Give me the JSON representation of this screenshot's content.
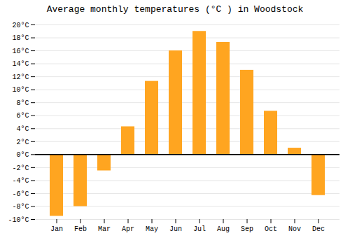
{
  "chart_data": {
    "type": "bar",
    "title": "Average monthly temperatures (°C ) in Woodstock",
    "categories": [
      "Jan",
      "Feb",
      "Mar",
      "Apr",
      "May",
      "Jun",
      "Jul",
      "Aug",
      "Sep",
      "Oct",
      "Nov",
      "Dec"
    ],
    "values": [
      -9.5,
      -8.0,
      -2.5,
      4.3,
      11.3,
      16.0,
      19.0,
      17.3,
      13.0,
      6.7,
      1.0,
      -6.3
    ],
    "color": "#FFA520",
    "ylim": [
      -10,
      20
    ],
    "yticks": [
      {
        "value": -10,
        "label": "-10°C"
      },
      {
        "value": -8,
        "label": "-8°C"
      },
      {
        "value": -6,
        "label": "-6°C"
      },
      {
        "value": -4,
        "label": "-4°C"
      },
      {
        "value": -2,
        "label": "-2°C"
      },
      {
        "value": 0,
        "label": "0°C"
      },
      {
        "value": 2,
        "label": "2°C"
      },
      {
        "value": 4,
        "label": "4°C"
      },
      {
        "value": 6,
        "label": "6°C"
      },
      {
        "value": 8,
        "label": "8°C"
      },
      {
        "value": 10,
        "label": "10°C"
      },
      {
        "value": 12,
        "label": "12°C"
      },
      {
        "value": 14,
        "label": "14°C"
      },
      {
        "value": 16,
        "label": "16°C"
      },
      {
        "value": 18,
        "label": "18°C"
      },
      {
        "value": 20,
        "label": "20°C"
      }
    ],
    "grid": true
  }
}
